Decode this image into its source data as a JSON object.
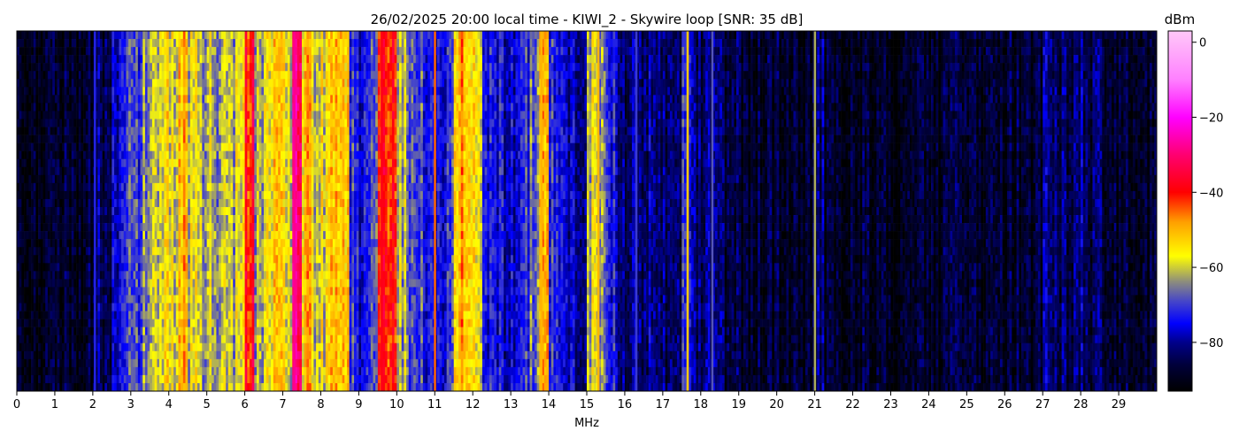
{
  "chart_data": {
    "type": "heatmap",
    "title": "26/02/2025 20:00 local time - KIWI_2 - Skywire loop [SNR: 35 dB]",
    "xlabel": "MHz",
    "ylabel": "",
    "xlim": [
      0,
      30
    ],
    "xticks": [
      "0",
      "1",
      "2",
      "3",
      "4",
      "5",
      "6",
      "7",
      "8",
      "9",
      "10",
      "11",
      "12",
      "13",
      "14",
      "15",
      "16",
      "17",
      "18",
      "19",
      "20",
      "21",
      "22",
      "23",
      "24",
      "25",
      "26",
      "27",
      "28",
      "29"
    ],
    "colorbar": {
      "label": "dBm",
      "range": [
        -93,
        3
      ],
      "ticks": [
        "0",
        "−20",
        "−40",
        "−60",
        "−80"
      ],
      "tick_values": [
        0,
        -20,
        -40,
        -60,
        -80
      ],
      "colormap": [
        {
          "v": -93,
          "c": "#000000"
        },
        {
          "v": -86,
          "c": "#00003a"
        },
        {
          "v": -80,
          "c": "#00008a"
        },
        {
          "v": -75,
          "c": "#0000ff"
        },
        {
          "v": -69,
          "c": "#4646c8"
        },
        {
          "v": -64,
          "c": "#8a8a80"
        },
        {
          "v": -57,
          "c": "#ffff00"
        },
        {
          "v": -48,
          "c": "#ffa000"
        },
        {
          "v": -40,
          "c": "#ff0000"
        },
        {
          "v": -30,
          "c": "#ff0070"
        },
        {
          "v": -20,
          "c": "#ff00ff"
        },
        {
          "v": -10,
          "c": "#ff80ff"
        },
        {
          "v": 3,
          "c": "#ffc8f8"
        }
      ]
    },
    "freq_step_mhz": 0.25,
    "mean_dbm_by_freq": [
      -89,
      -89,
      -89,
      -89,
      -88,
      -88,
      -88,
      -87,
      -82,
      -86,
      -76,
      -70,
      -72,
      -67,
      -58,
      -56,
      -58,
      -50,
      -60,
      -62,
      -60,
      -62,
      -63,
      -55,
      -40,
      -62,
      -58,
      -54,
      -58,
      -30,
      -52,
      -60,
      -58,
      -52,
      -50,
      -72,
      -74,
      -68,
      -40,
      -42,
      -62,
      -68,
      -70,
      -72,
      -74,
      -72,
      -50,
      -52,
      -55,
      -72,
      -74,
      -76,
      -75,
      -72,
      -67,
      -52,
      -70,
      -76,
      -78,
      -80,
      -60,
      -62,
      -74,
      -78,
      -82,
      -82,
      -81,
      -82,
      -83,
      -82,
      -72,
      -82,
      -82,
      -82,
      -84,
      -86,
      -88,
      -88,
      -88,
      -88,
      -88,
      -88,
      -88,
      -88,
      -82,
      -87,
      -88,
      -88,
      -88,
      -88,
      -89,
      -89,
      -89,
      -89,
      -89,
      -89,
      -89,
      -89,
      -87,
      -87,
      -88,
      -88,
      -88,
      -88,
      -88,
      -88,
      -88,
      -88,
      -82,
      -84,
      -84,
      -83,
      -82,
      -84,
      -85,
      -88,
      -89,
      -89,
      -89,
      -89
    ],
    "carriers_mhz_dbm": [
      [
        2.05,
        -72
      ],
      [
        7.3,
        -28
      ],
      [
        9.6,
        -38
      ],
      [
        11.0,
        -45
      ],
      [
        13.8,
        -50
      ],
      [
        15.3,
        -50
      ],
      [
        17.65,
        -52
      ],
      [
        21.0,
        -62
      ],
      [
        16.3,
        -70
      ],
      [
        18.3,
        -68
      ]
    ]
  }
}
